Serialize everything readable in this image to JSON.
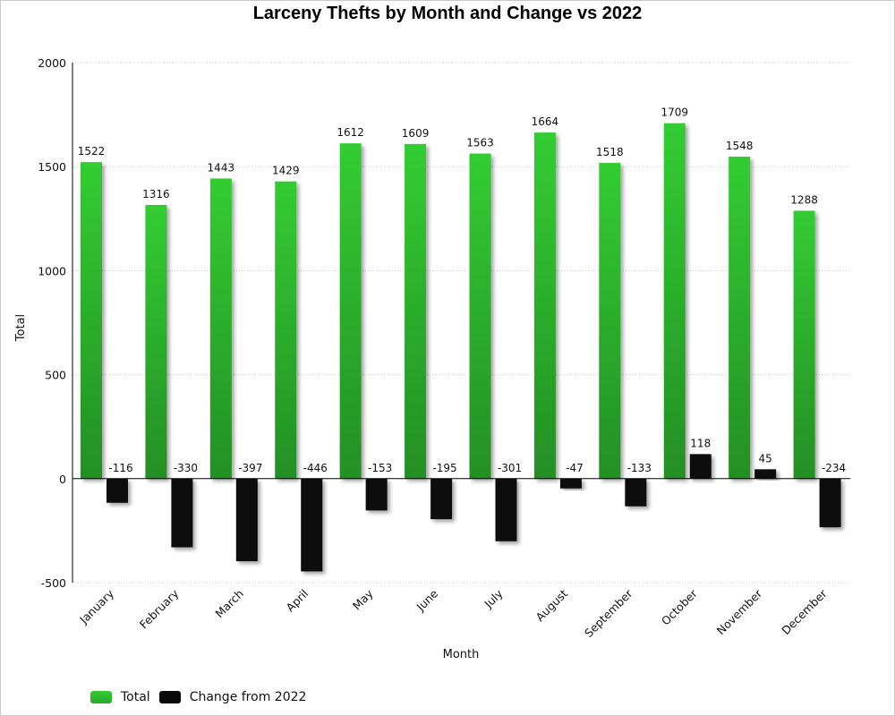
{
  "chart_data": {
    "type": "bar",
    "title": "Larceny Thefts by Month and Change vs 2022",
    "xlabel": "Month",
    "ylabel": "Total",
    "ylim": [
      -500,
      2000
    ],
    "yticks": [
      2000,
      1500,
      1000,
      500,
      0,
      -500
    ],
    "grid": true,
    "legend_position": "bottom-left",
    "categories": [
      "January",
      "February",
      "March",
      "April",
      "May",
      "June",
      "July",
      "August",
      "September",
      "October",
      "November",
      "December"
    ],
    "series": [
      {
        "name": "Total",
        "color": "#33cc33",
        "values": [
          1522,
          1316,
          1443,
          1429,
          1612,
          1609,
          1563,
          1664,
          1518,
          1709,
          1548,
          1288
        ]
      },
      {
        "name": "Change from 2022",
        "color": "#0a0a0a",
        "values": [
          -116,
          -330,
          -397,
          -446,
          -153,
          -195,
          -301,
          -47,
          -133,
          118,
          45,
          -234
        ]
      }
    ]
  }
}
